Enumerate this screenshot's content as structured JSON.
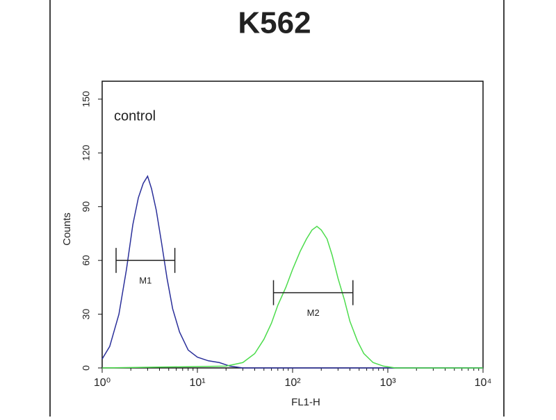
{
  "chart_data": {
    "type": "histogram-line",
    "title": "K562",
    "xlabel": "FL1-H",
    "ylabel": "Counts",
    "xscale": "log",
    "xlim": [
      1,
      10000
    ],
    "xticks": [
      {
        "value": 1,
        "label": "10⁰"
      },
      {
        "value": 10,
        "label": "10¹"
      },
      {
        "value": 100,
        "label": "10²"
      },
      {
        "value": 1000,
        "label": "10³"
      },
      {
        "value": 10000,
        "label": "10⁴"
      }
    ],
    "ylim": [
      0,
      160
    ],
    "yticks": [
      0,
      30,
      60,
      90,
      120,
      150
    ],
    "series": [
      {
        "name": "control",
        "color": "#2a2f9a",
        "x": [
          1,
          1.2,
          1.5,
          1.8,
          2.1,
          2.4,
          2.7,
          3.0,
          3.3,
          3.7,
          4.2,
          4.8,
          5.5,
          6.5,
          8,
          10,
          13,
          17,
          22,
          30,
          50,
          100,
          1000,
          10000
        ],
        "values": [
          5,
          12,
          30,
          55,
          80,
          95,
          103,
          107,
          100,
          88,
          70,
          50,
          33,
          20,
          10,
          6,
          4,
          3,
          1,
          0,
          0,
          0,
          0,
          0
        ]
      },
      {
        "color": "#4cdc4c",
        "x": [
          1,
          20,
          30,
          40,
          50,
          60,
          70,
          85,
          100,
          120,
          140,
          160,
          180,
          200,
          230,
          260,
          300,
          350,
          400,
          480,
          560,
          700,
          900,
          1200,
          10000
        ],
        "values": [
          0,
          1,
          3,
          8,
          16,
          25,
          35,
          45,
          55,
          65,
          72,
          77,
          79,
          77,
          72,
          63,
          50,
          38,
          26,
          15,
          8,
          3,
          1,
          0,
          0
        ]
      }
    ],
    "markers": [
      {
        "label": "M1",
        "x": [
          1.4,
          5.8
        ],
        "y": 60
      },
      {
        "label": "M2",
        "x": [
          63,
          430
        ],
        "y": 42
      }
    ]
  }
}
